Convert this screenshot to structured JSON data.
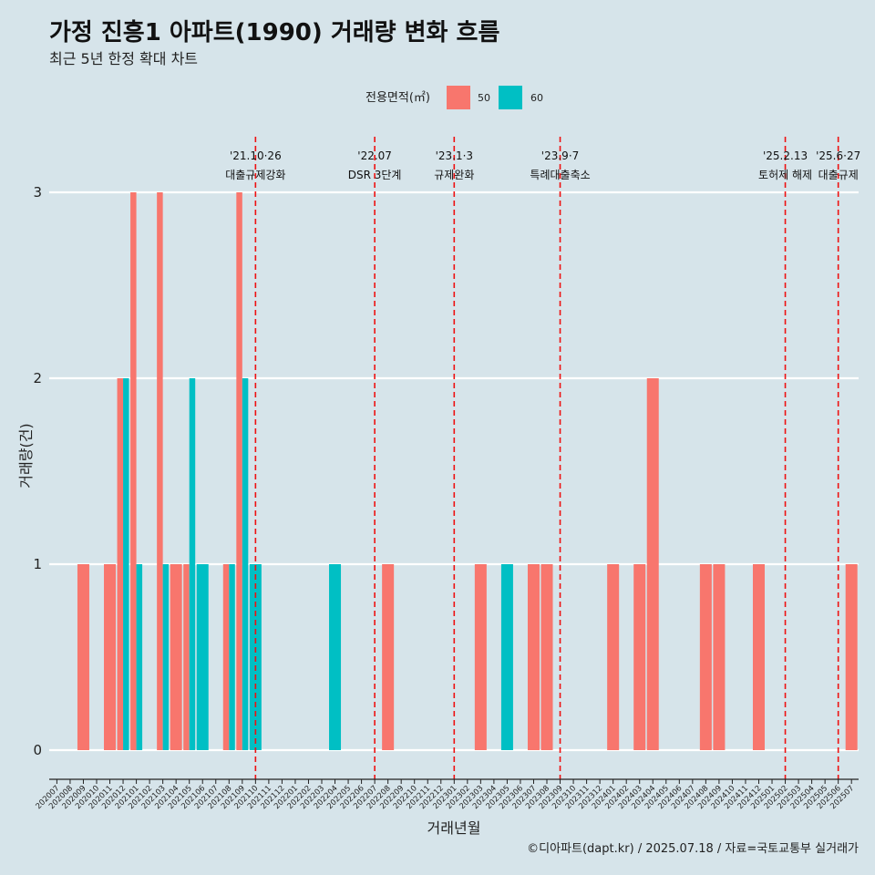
{
  "title": "가정 진흥1 아파트(1990) 거래량 변화 흐름",
  "subtitle": "최근 5년 한정 확대 차트",
  "caption": "©디아파트(dapt.kr) / 2025.07.18 / 자료=국토교통부 실거래가",
  "chart_data": {
    "type": "bar",
    "xlabel": "거래년월",
    "ylabel": "거래량(건)",
    "ylim": [
      0,
      3
    ],
    "yticks": [
      "0",
      "1",
      "2",
      "3"
    ],
    "grid": true,
    "legend": {
      "title": "전용면적(㎡)",
      "placement": "top-center",
      "entries": [
        {
          "label": "50",
          "color": "#f8766d"
        },
        {
          "label": "60",
          "color": "#00bfc4"
        }
      ]
    },
    "categories": [
      "202007",
      "202008",
      "202009",
      "202010",
      "202011",
      "202012",
      "202101",
      "202102",
      "202103",
      "202104",
      "202105",
      "202106",
      "202107",
      "202108",
      "202109",
      "202110",
      "202111",
      "202112",
      "202201",
      "202202",
      "202203",
      "202204",
      "202205",
      "202206",
      "202207",
      "202208",
      "202209",
      "202210",
      "202211",
      "202212",
      "202301",
      "202302",
      "202303",
      "202304",
      "202305",
      "202306",
      "202307",
      "202308",
      "202309",
      "202310",
      "202311",
      "202312",
      "202401",
      "202402",
      "202403",
      "202404",
      "202405",
      "202406",
      "202407",
      "202408",
      "202409",
      "202410",
      "202411",
      "202412",
      "202501",
      "202502",
      "202503",
      "202504",
      "202505",
      "202506",
      "202507"
    ],
    "series": [
      {
        "name": "50",
        "color": "#f8766d",
        "values": [
          0,
          0,
          1,
          0,
          1,
          2,
          3,
          0,
          3,
          1,
          1,
          0,
          0,
          1,
          3,
          0,
          0,
          0,
          0,
          0,
          0,
          0,
          0,
          0,
          0,
          1,
          0,
          0,
          0,
          0,
          0,
          0,
          1,
          0,
          0,
          0,
          1,
          1,
          0,
          0,
          0,
          0,
          1,
          0,
          1,
          2,
          0,
          0,
          0,
          1,
          1,
          0,
          0,
          1,
          0,
          0,
          0,
          0,
          0,
          0,
          1
        ]
      },
      {
        "name": "60",
        "color": "#00bfc4",
        "values": [
          0,
          0,
          0,
          0,
          0,
          2,
          1,
          0,
          1,
          0,
          2,
          1,
          0,
          1,
          2,
          1,
          0,
          0,
          0,
          0,
          0,
          1,
          0,
          0,
          0,
          0,
          0,
          0,
          0,
          0,
          0,
          0,
          0,
          0,
          1,
          0,
          0,
          0,
          0,
          0,
          0,
          0,
          0,
          0,
          0,
          0,
          0,
          0,
          0,
          0,
          0,
          0,
          0,
          0,
          0,
          0,
          0,
          0,
          0,
          0,
          0
        ]
      }
    ],
    "annotations": [
      {
        "date": "'21.10·26",
        "label": "대출규제강화",
        "at": "202110"
      },
      {
        "date": "'22.07",
        "label": "DSR 3단계",
        "at": "202207"
      },
      {
        "date": "'23.1·3",
        "label": "규제완화",
        "at": "202301"
      },
      {
        "date": "'23.9·7",
        "label": "특례대출축소",
        "at": "202309"
      },
      {
        "date": "'25.2.13",
        "label": "토허제 해제",
        "at": "202502"
      },
      {
        "date": "'25.6·27",
        "label": "대출규제",
        "at": "202506"
      }
    ]
  }
}
